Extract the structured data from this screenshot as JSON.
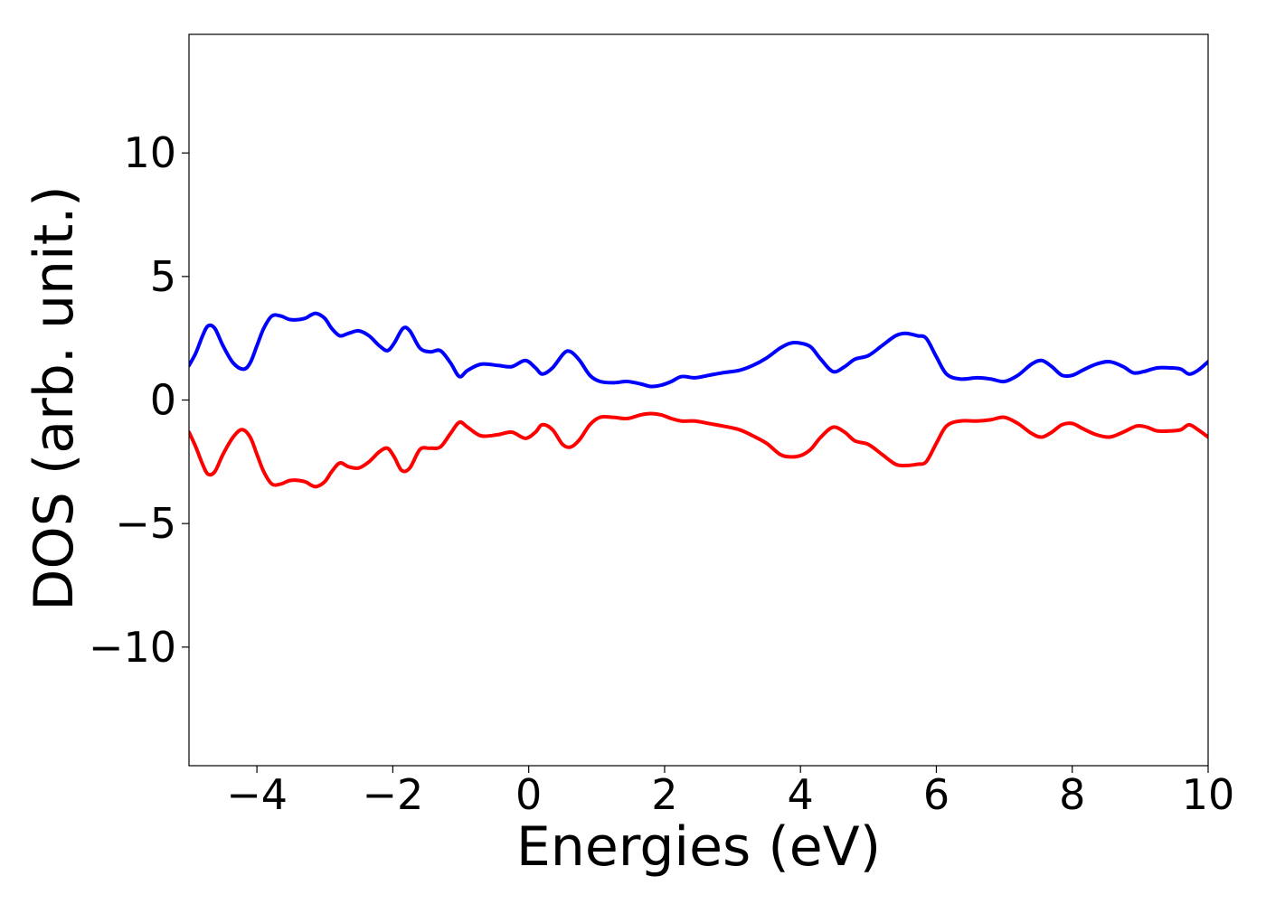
{
  "chart_data": {
    "type": "line",
    "title": "",
    "xlabel": "Energies (eV)",
    "ylabel": "DOS (arb. unit.)",
    "xlim": [
      -5,
      10
    ],
    "ylim": [
      -14.8,
      14.8
    ],
    "grid": false,
    "legend": "none",
    "x_ticks": [
      -4,
      -2,
      0,
      2,
      4,
      6,
      8,
      10
    ],
    "x_tick_labels": [
      "−4",
      "−2",
      "0",
      "2",
      "4",
      "6",
      "8",
      "10"
    ],
    "y_ticks": [
      -10,
      -5,
      0,
      5,
      10
    ],
    "y_tick_labels": [
      "−10",
      "−5",
      "0",
      "5",
      "10"
    ],
    "series": [
      {
        "color": "#0000ff",
        "points": [
          [
            -5.0,
            1.4
          ],
          [
            -4.9,
            1.9
          ],
          [
            -4.8,
            2.6
          ],
          [
            -4.72,
            3.0
          ],
          [
            -4.62,
            2.9
          ],
          [
            -4.5,
            2.2
          ],
          [
            -4.35,
            1.5
          ],
          [
            -4.2,
            1.25
          ],
          [
            -4.1,
            1.5
          ],
          [
            -4.0,
            2.2
          ],
          [
            -3.9,
            2.9
          ],
          [
            -3.78,
            3.4
          ],
          [
            -3.65,
            3.4
          ],
          [
            -3.5,
            3.25
          ],
          [
            -3.3,
            3.3
          ],
          [
            -3.2,
            3.45
          ],
          [
            -3.12,
            3.5
          ],
          [
            -3.0,
            3.3
          ],
          [
            -2.9,
            2.9
          ],
          [
            -2.78,
            2.6
          ],
          [
            -2.65,
            2.7
          ],
          [
            -2.5,
            2.8
          ],
          [
            -2.35,
            2.6
          ],
          [
            -2.2,
            2.2
          ],
          [
            -2.08,
            2.0
          ],
          [
            -1.98,
            2.3
          ],
          [
            -1.85,
            2.9
          ],
          [
            -1.75,
            2.8
          ],
          [
            -1.6,
            2.1
          ],
          [
            -1.45,
            1.95
          ],
          [
            -1.3,
            2.0
          ],
          [
            -1.15,
            1.5
          ],
          [
            -1.02,
            0.95
          ],
          [
            -0.9,
            1.2
          ],
          [
            -0.7,
            1.45
          ],
          [
            -0.45,
            1.4
          ],
          [
            -0.25,
            1.35
          ],
          [
            -0.05,
            1.6
          ],
          [
            0.1,
            1.3
          ],
          [
            0.2,
            1.05
          ],
          [
            0.35,
            1.3
          ],
          [
            0.52,
            1.9
          ],
          [
            0.62,
            1.95
          ],
          [
            0.75,
            1.6
          ],
          [
            0.9,
            1.0
          ],
          [
            1.05,
            0.75
          ],
          [
            1.25,
            0.7
          ],
          [
            1.45,
            0.75
          ],
          [
            1.65,
            0.65
          ],
          [
            1.8,
            0.55
          ],
          [
            1.95,
            0.6
          ],
          [
            2.1,
            0.75
          ],
          [
            2.25,
            0.95
          ],
          [
            2.45,
            0.9
          ],
          [
            2.65,
            1.0
          ],
          [
            2.85,
            1.1
          ],
          [
            3.1,
            1.2
          ],
          [
            3.3,
            1.4
          ],
          [
            3.5,
            1.7
          ],
          [
            3.7,
            2.1
          ],
          [
            3.85,
            2.3
          ],
          [
            4.0,
            2.3
          ],
          [
            4.15,
            2.15
          ],
          [
            4.3,
            1.65
          ],
          [
            4.48,
            1.15
          ],
          [
            4.65,
            1.35
          ],
          [
            4.8,
            1.65
          ],
          [
            5.0,
            1.8
          ],
          [
            5.2,
            2.2
          ],
          [
            5.4,
            2.6
          ],
          [
            5.55,
            2.7
          ],
          [
            5.72,
            2.6
          ],
          [
            5.85,
            2.5
          ],
          [
            6.0,
            1.75
          ],
          [
            6.15,
            1.05
          ],
          [
            6.35,
            0.85
          ],
          [
            6.6,
            0.9
          ],
          [
            6.8,
            0.85
          ],
          [
            7.0,
            0.75
          ],
          [
            7.2,
            1.0
          ],
          [
            7.4,
            1.45
          ],
          [
            7.55,
            1.6
          ],
          [
            7.7,
            1.35
          ],
          [
            7.85,
            1.0
          ],
          [
            8.0,
            1.0
          ],
          [
            8.15,
            1.2
          ],
          [
            8.35,
            1.45
          ],
          [
            8.55,
            1.55
          ],
          [
            8.75,
            1.35
          ],
          [
            8.9,
            1.1
          ],
          [
            9.05,
            1.15
          ],
          [
            9.25,
            1.3
          ],
          [
            9.45,
            1.3
          ],
          [
            9.6,
            1.25
          ],
          [
            9.72,
            1.05
          ],
          [
            9.85,
            1.2
          ],
          [
            10.0,
            1.55
          ]
        ]
      },
      {
        "color": "#ff0000",
        "points": [
          [
            -5.0,
            -1.3
          ],
          [
            -4.9,
            -1.9
          ],
          [
            -4.8,
            -2.6
          ],
          [
            -4.72,
            -3.0
          ],
          [
            -4.62,
            -2.9
          ],
          [
            -4.5,
            -2.2
          ],
          [
            -4.35,
            -1.5
          ],
          [
            -4.22,
            -1.2
          ],
          [
            -4.1,
            -1.5
          ],
          [
            -4.0,
            -2.2
          ],
          [
            -3.9,
            -2.9
          ],
          [
            -3.78,
            -3.4
          ],
          [
            -3.65,
            -3.4
          ],
          [
            -3.5,
            -3.25
          ],
          [
            -3.3,
            -3.3
          ],
          [
            -3.2,
            -3.45
          ],
          [
            -3.12,
            -3.5
          ],
          [
            -3.0,
            -3.3
          ],
          [
            -2.9,
            -2.9
          ],
          [
            -2.78,
            -2.55
          ],
          [
            -2.65,
            -2.7
          ],
          [
            -2.5,
            -2.75
          ],
          [
            -2.35,
            -2.5
          ],
          [
            -2.2,
            -2.1
          ],
          [
            -2.08,
            -1.95
          ],
          [
            -1.98,
            -2.3
          ],
          [
            -1.87,
            -2.85
          ],
          [
            -1.75,
            -2.75
          ],
          [
            -1.6,
            -2.0
          ],
          [
            -1.45,
            -1.95
          ],
          [
            -1.3,
            -1.9
          ],
          [
            -1.15,
            -1.35
          ],
          [
            -1.02,
            -0.9
          ],
          [
            -0.9,
            -1.1
          ],
          [
            -0.7,
            -1.45
          ],
          [
            -0.45,
            -1.4
          ],
          [
            -0.25,
            -1.3
          ],
          [
            -0.05,
            -1.55
          ],
          [
            0.1,
            -1.3
          ],
          [
            0.2,
            -1.0
          ],
          [
            0.35,
            -1.2
          ],
          [
            0.5,
            -1.8
          ],
          [
            0.62,
            -1.9
          ],
          [
            0.75,
            -1.6
          ],
          [
            0.9,
            -1.0
          ],
          [
            1.05,
            -0.7
          ],
          [
            1.25,
            -0.7
          ],
          [
            1.45,
            -0.75
          ],
          [
            1.65,
            -0.6
          ],
          [
            1.8,
            -0.55
          ],
          [
            1.95,
            -0.6
          ],
          [
            2.1,
            -0.75
          ],
          [
            2.25,
            -0.85
          ],
          [
            2.45,
            -0.85
          ],
          [
            2.65,
            -0.95
          ],
          [
            2.85,
            -1.05
          ],
          [
            3.1,
            -1.2
          ],
          [
            3.3,
            -1.45
          ],
          [
            3.5,
            -1.75
          ],
          [
            3.7,
            -2.2
          ],
          [
            3.85,
            -2.3
          ],
          [
            4.0,
            -2.25
          ],
          [
            4.15,
            -2.0
          ],
          [
            4.3,
            -1.5
          ],
          [
            4.48,
            -1.1
          ],
          [
            4.65,
            -1.3
          ],
          [
            4.8,
            -1.65
          ],
          [
            5.0,
            -1.8
          ],
          [
            5.2,
            -2.2
          ],
          [
            5.4,
            -2.6
          ],
          [
            5.55,
            -2.65
          ],
          [
            5.72,
            -2.6
          ],
          [
            5.85,
            -2.5
          ],
          [
            6.0,
            -1.75
          ],
          [
            6.15,
            -1.05
          ],
          [
            6.35,
            -0.85
          ],
          [
            6.6,
            -0.85
          ],
          [
            6.8,
            -0.8
          ],
          [
            7.0,
            -0.7
          ],
          [
            7.2,
            -0.95
          ],
          [
            7.4,
            -1.35
          ],
          [
            7.55,
            -1.5
          ],
          [
            7.7,
            -1.3
          ],
          [
            7.85,
            -1.0
          ],
          [
            8.0,
            -0.95
          ],
          [
            8.15,
            -1.15
          ],
          [
            8.35,
            -1.4
          ],
          [
            8.55,
            -1.5
          ],
          [
            8.75,
            -1.3
          ],
          [
            8.95,
            -1.05
          ],
          [
            9.1,
            -1.1
          ],
          [
            9.25,
            -1.25
          ],
          [
            9.45,
            -1.25
          ],
          [
            9.6,
            -1.2
          ],
          [
            9.72,
            -1.0
          ],
          [
            9.85,
            -1.2
          ],
          [
            10.0,
            -1.5
          ]
        ]
      }
    ]
  }
}
